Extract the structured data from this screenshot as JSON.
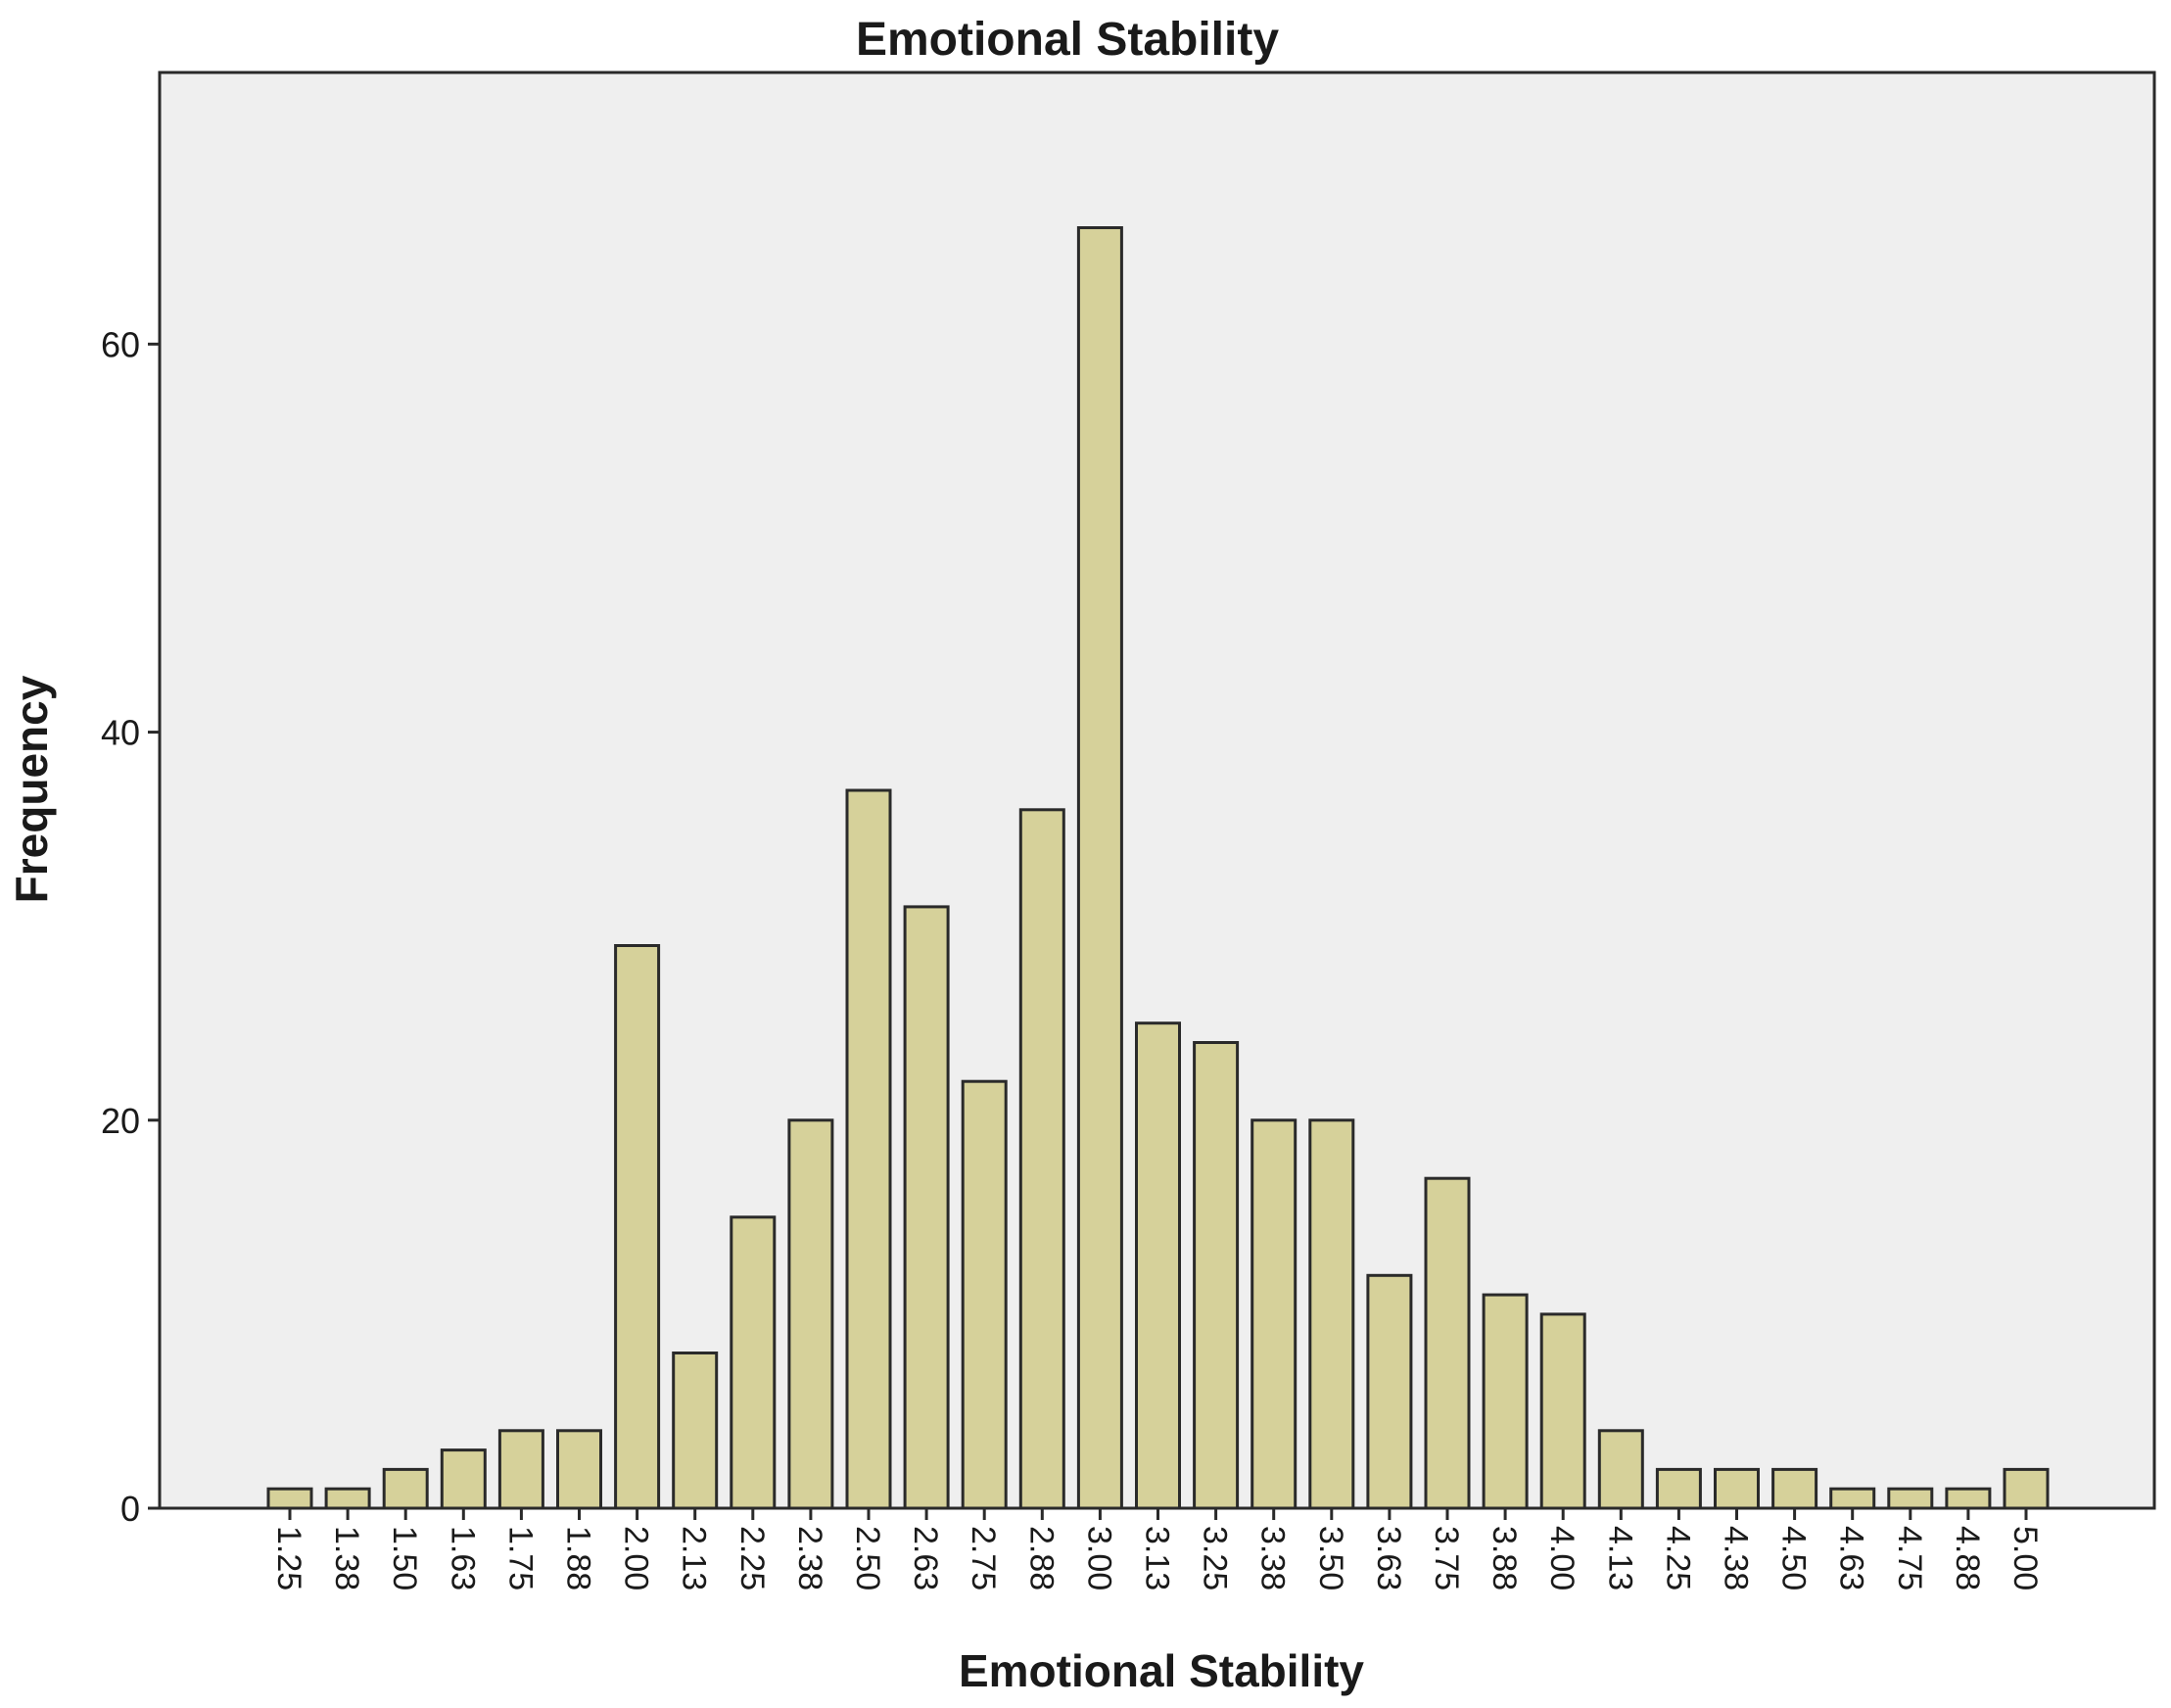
{
  "chart_data": {
    "type": "bar",
    "title": "Emotional Stability",
    "xlabel": "Emotional Stability",
    "ylabel": "Frequency",
    "categories": [
      "1.25",
      "1.38",
      "1.50",
      "1.63",
      "1.75",
      "1.88",
      "2.00",
      "2.13",
      "2.25",
      "2.38",
      "2.50",
      "2.63",
      "2.75",
      "2.88",
      "3.00",
      "3.13",
      "3.25",
      "3.38",
      "3.50",
      "3.63",
      "3.75",
      "3.88",
      "4.00",
      "4.13",
      "4.25",
      "4.38",
      "4.50",
      "4.63",
      "4.75",
      "4.88",
      "5.00"
    ],
    "values": [
      1,
      1,
      2,
      3,
      4,
      4,
      29,
      8,
      15,
      20,
      37,
      31,
      22,
      36,
      66,
      25,
      24,
      20,
      20,
      12,
      17,
      11,
      10,
      4,
      2,
      2,
      2,
      1,
      1,
      1,
      2
    ],
    "ylim": [
      0,
      74
    ],
    "yticks": [
      "0",
      "20",
      "40",
      "60"
    ],
    "grid": false,
    "colors": {
      "bar_fill": "#d6d19a",
      "bar_stroke": "#2a2a2a",
      "plot_background": "#efefef",
      "axis": "#2a2a2a"
    }
  }
}
